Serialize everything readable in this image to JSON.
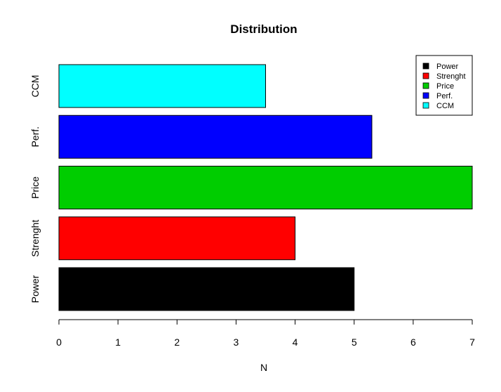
{
  "chart_data": {
    "type": "bar",
    "orientation": "horizontal",
    "title": "Distribution",
    "xlabel": "N",
    "ylabel": "",
    "xlim": [
      0,
      7
    ],
    "x_ticks": [
      "0",
      "1",
      "2",
      "3",
      "4",
      "5",
      "6",
      "7"
    ],
    "categories": [
      "Power",
      "Strenght",
      "Price",
      "Perf.",
      "CCM"
    ],
    "values": [
      5,
      4,
      7,
      5.3,
      3.5
    ],
    "colors": [
      "#000000",
      "#ff0000",
      "#00cd00",
      "#0000ff",
      "#00ffff"
    ],
    "grid": false,
    "legend": {
      "placement": "top-right",
      "entries": [
        "Power",
        "Strenght",
        "Price",
        "Perf.",
        "CCM"
      ]
    }
  }
}
